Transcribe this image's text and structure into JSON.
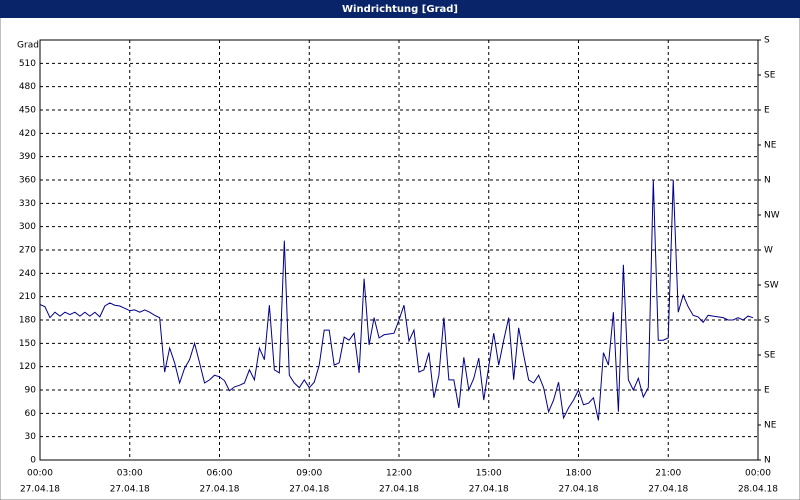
{
  "chart_data": {
    "type": "line",
    "title": "Windrichtung [Grad]",
    "y_label": "Grad",
    "x": [
      0,
      10,
      20,
      30,
      40,
      50,
      60,
      70,
      80,
      90,
      100,
      110,
      120,
      130,
      140,
      150,
      160,
      170,
      180,
      190,
      200,
      210,
      220,
      230,
      240,
      250,
      260,
      270,
      280,
      290,
      300,
      310,
      320,
      330,
      340,
      350,
      360,
      370,
      380,
      390,
      400,
      410,
      420,
      430,
      440,
      450,
      460,
      470,
      480,
      490,
      500,
      510,
      520,
      530,
      540,
      550,
      560,
      570,
      580,
      590,
      600,
      610,
      620,
      630,
      640,
      650,
      660,
      670,
      680,
      690,
      700,
      710,
      720,
      730,
      740,
      750,
      760,
      770,
      780,
      790,
      800,
      810,
      820,
      830,
      840,
      850,
      860,
      870,
      880,
      890,
      900,
      910,
      920,
      930,
      940,
      950,
      960,
      970,
      980,
      990,
      1000,
      1010,
      1020,
      1030,
      1040,
      1050,
      1060,
      1070,
      1080,
      1090,
      1100,
      1110,
      1120,
      1130,
      1140,
      1150,
      1160,
      1170,
      1180,
      1190,
      1200,
      1210,
      1220,
      1230,
      1240,
      1250,
      1260,
      1270,
      1280,
      1290,
      1300,
      1310,
      1320,
      1330,
      1340,
      1350,
      1360,
      1370,
      1380,
      1390,
      1400,
      1410,
      1420,
      1430
    ],
    "series": [
      {
        "name": "Windrichtung",
        "color": "#00008b",
        "values": [
          200,
          197,
          183,
          190,
          185,
          190,
          187,
          190,
          185,
          190,
          185,
          190,
          184,
          198,
          202,
          199,
          198,
          195,
          192,
          193,
          190,
          193,
          190,
          186,
          183,
          113,
          144,
          125,
          99,
          118,
          129,
          150,
          125,
          99,
          103,
          109,
          107,
          102,
          89,
          94,
          96,
          99,
          116,
          103,
          144,
          129,
          199,
          116,
          112,
          282,
          109,
          99,
          93,
          103,
          93,
          100,
          122,
          167,
          167,
          122,
          125,
          158,
          154,
          163,
          112,
          233,
          148,
          183,
          157,
          161,
          162,
          163,
          180,
          199,
          153,
          167,
          113,
          116,
          138,
          80,
          109,
          183,
          103,
          103,
          67,
          132,
          90,
          105,
          131,
          77,
          120,
          163,
          122,
          154,
          183,
          103,
          170,
          135,
          103,
          99,
          109,
          93,
          62,
          77,
          100,
          54,
          67,
          77,
          90,
          71,
          73,
          80,
          51,
          138,
          122,
          190,
          62,
          251,
          103,
          90,
          105,
          81,
          93,
          360,
          154,
          154,
          157,
          360,
          190,
          212,
          197,
          186,
          184,
          177,
          186,
          185,
          184,
          183,
          180,
          180,
          183,
          180,
          185,
          183
        ]
      }
    ],
    "xlim": [
      0,
      1440
    ],
    "xticks": [
      {
        "value": 0,
        "label": "00:00"
      },
      {
        "value": 180,
        "label": "03:00"
      },
      {
        "value": 360,
        "label": "06:00"
      },
      {
        "value": 540,
        "label": "09:00"
      },
      {
        "value": 720,
        "label": "12:00"
      },
      {
        "value": 900,
        "label": "15:00"
      },
      {
        "value": 1080,
        "label": "18:00"
      },
      {
        "value": 1260,
        "label": "21:00"
      },
      {
        "value": 1440,
        "label": "00:00"
      }
    ],
    "xtick_dates": [
      "27.04.18",
      "27.04.18",
      "27.04.18",
      "27.04.18",
      "27.04.18",
      "27.04.18",
      "27.04.18",
      "27.04.18",
      "28.04.18"
    ],
    "ylim": [
      0,
      540
    ],
    "yticks": [
      0,
      30,
      60,
      90,
      120,
      150,
      180,
      210,
      240,
      270,
      300,
      330,
      360,
      390,
      420,
      450,
      480,
      510
    ],
    "y2lim": [
      0,
      540
    ],
    "y2ticks": [
      {
        "value": 0,
        "label": "N"
      },
      {
        "value": 45,
        "label": "NE"
      },
      {
        "value": 90,
        "label": "E"
      },
      {
        "value": 135,
        "label": "SE"
      },
      {
        "value": 180,
        "label": "S"
      },
      {
        "value": 225,
        "label": "SW"
      },
      {
        "value": 270,
        "label": "W"
      },
      {
        "value": 315,
        "label": "NW"
      },
      {
        "value": 360,
        "label": "N"
      },
      {
        "value": 405,
        "label": "NE"
      },
      {
        "value": 450,
        "label": "E"
      },
      {
        "value": 495,
        "label": "SE"
      },
      {
        "value": 540,
        "label": "S"
      }
    ],
    "grid": true
  }
}
